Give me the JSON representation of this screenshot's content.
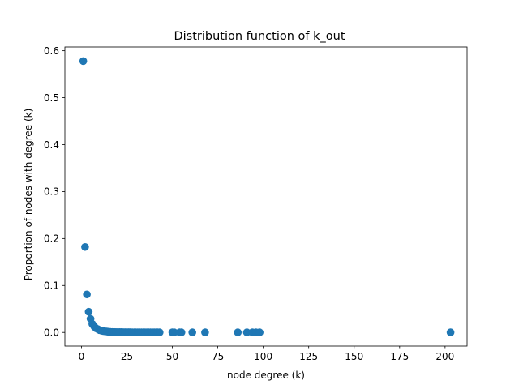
{
  "chart_data": {
    "type": "scatter",
    "title": "Distribution function of k_out",
    "xlabel": "node degree (k)",
    "ylabel": "Proportion of nodes with degree (k)",
    "xlim": [
      -9.1,
      212.1
    ],
    "ylim": [
      -0.029,
      0.608
    ],
    "xticks": [
      0,
      25,
      50,
      75,
      100,
      125,
      150,
      175,
      200
    ],
    "yticks": [
      0.0,
      0.1,
      0.2,
      0.3,
      0.4,
      0.5,
      0.6
    ],
    "xtick_labels": [
      "0",
      "25",
      "50",
      "75",
      "100",
      "125",
      "150",
      "175",
      "200"
    ],
    "ytick_labels": [
      "0.0",
      "0.1",
      "0.2",
      "0.3",
      "0.4",
      "0.5",
      "0.6"
    ],
    "grid": false,
    "marker_color": "#1f77b4",
    "series": [
      {
        "x": [
          1,
          2,
          3,
          4,
          5,
          6,
          7,
          8,
          9,
          10,
          11,
          12,
          13,
          14,
          15,
          16,
          17,
          18,
          19,
          20,
          21,
          22,
          23,
          24,
          25,
          26,
          27,
          28,
          29,
          30,
          31,
          32,
          33,
          34,
          35,
          36,
          37,
          38,
          39,
          40,
          41,
          42,
          43,
          50,
          51,
          54,
          55,
          61,
          68,
          86,
          91,
          94,
          96,
          98,
          203
        ],
        "y": [
          0.578,
          0.182,
          0.081,
          0.044,
          0.029,
          0.018,
          0.013,
          0.009,
          0.007,
          0.005,
          0.004,
          0.003,
          0.0025,
          0.002,
          0.0015,
          0.0012,
          0.001,
          0.001,
          0.0008,
          0.0007,
          0.0006,
          0.0006,
          0.0005,
          0.0005,
          0.0004,
          0.0004,
          0.0004,
          0.0003,
          0.0003,
          0.0003,
          0.0003,
          0.0003,
          0.0002,
          0.0002,
          0.0002,
          0.0002,
          0.0002,
          0.0002,
          0.0002,
          0.0002,
          0.0002,
          0.0002,
          0.0002,
          0.0002,
          0.0002,
          0.0002,
          0.0002,
          0.0002,
          0.0002,
          0.0002,
          0.0002,
          0.0002,
          0.0002,
          0.0002,
          0.0002
        ]
      }
    ]
  }
}
